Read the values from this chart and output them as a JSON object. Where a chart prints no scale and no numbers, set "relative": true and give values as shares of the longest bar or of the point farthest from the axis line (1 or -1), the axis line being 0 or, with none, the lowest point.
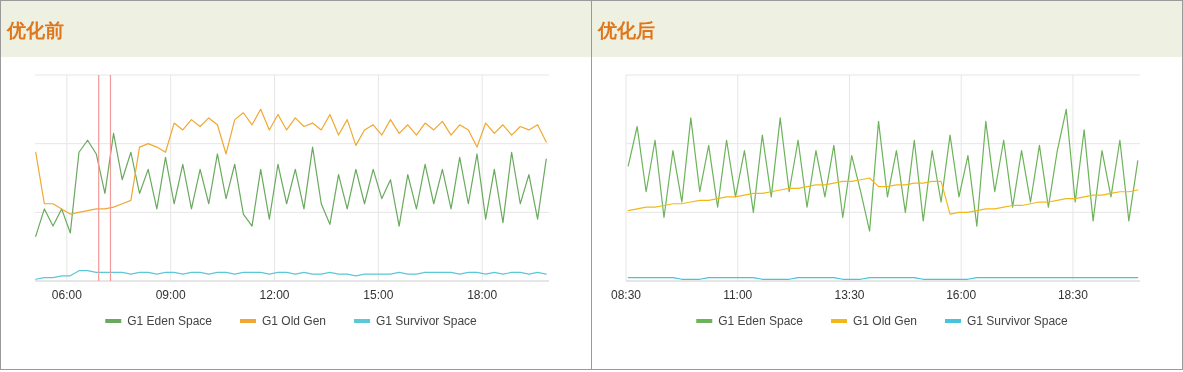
{
  "chart_data": [
    {
      "type": "line",
      "title": "优化前",
      "relative": true,
      "grid": true,
      "legend": "bottom",
      "xlim": [
        5.08,
        19.93
      ],
      "xticks": [
        {
          "value": 6,
          "label": "06:00"
        },
        {
          "value": 9,
          "label": "09:00"
        },
        {
          "value": 12,
          "label": "12:00"
        },
        {
          "value": 15,
          "label": "15:00"
        },
        {
          "value": 18,
          "label": "18:00"
        }
      ],
      "x": [
        5.1,
        5.35,
        5.6,
        5.85,
        6.1,
        6.35,
        6.6,
        6.85,
        7.1,
        7.35,
        7.6,
        7.85,
        8.1,
        8.35,
        8.6,
        8.85,
        9.1,
        9.35,
        9.6,
        9.85,
        10.1,
        10.35,
        10.6,
        10.85,
        11.1,
        11.35,
        11.6,
        11.85,
        12.1,
        12.35,
        12.6,
        12.85,
        13.1,
        13.35,
        13.6,
        13.85,
        14.1,
        14.35,
        14.6,
        14.85,
        15.1,
        15.35,
        15.6,
        15.85,
        16.1,
        16.35,
        16.6,
        16.85,
        17.1,
        17.35,
        17.6,
        17.85,
        18.1,
        18.35,
        18.6,
        18.85,
        19.1,
        19.35,
        19.6,
        19.85
      ],
      "series": [
        {
          "name": "G1 Eden Space",
          "color": "#6aaa5e",
          "values": [
            0.26,
            0.42,
            0.32,
            0.42,
            0.28,
            0.75,
            0.82,
            0.74,
            0.51,
            0.86,
            0.59,
            0.75,
            0.51,
            0.65,
            0.42,
            0.72,
            0.45,
            0.68,
            0.42,
            0.65,
            0.45,
            0.74,
            0.48,
            0.68,
            0.39,
            0.32,
            0.65,
            0.36,
            0.68,
            0.45,
            0.65,
            0.42,
            0.78,
            0.45,
            0.33,
            0.62,
            0.42,
            0.65,
            0.45,
            0.65,
            0.48,
            0.59,
            0.32,
            0.62,
            0.42,
            0.68,
            0.45,
            0.65,
            0.42,
            0.72,
            0.45,
            0.74,
            0.36,
            0.65,
            0.34,
            0.75,
            0.45,
            0.62,
            0.36,
            0.71
          ]
        },
        {
          "name": "G1 Old Gen",
          "color": "#f0a832",
          "values": [
            0.75,
            0.45,
            0.45,
            0.42,
            0.39,
            0.4,
            0.41,
            0.42,
            0.42,
            0.43,
            0.45,
            0.47,
            0.78,
            0.8,
            0.78,
            0.75,
            0.92,
            0.88,
            0.94,
            0.9,
            0.95,
            0.91,
            0.74,
            0.94,
            0.98,
            0.91,
            1,
            0.88,
            0.97,
            0.88,
            0.95,
            0.9,
            0.92,
            0.88,
            0.97,
            0.85,
            0.94,
            0.79,
            0.88,
            0.91,
            0.85,
            0.94,
            0.86,
            0.91,
            0.85,
            0.92,
            0.88,
            0.93,
            0.85,
            0.91,
            0.88,
            0.78,
            0.92,
            0.86,
            0.91,
            0.85,
            0.9,
            0.88,
            0.91,
            0.81
          ]
        },
        {
          "name": "G1 Survivor Space",
          "color": "#5bc8d8",
          "values": [
            0.01,
            0.02,
            0.02,
            0.03,
            0.03,
            0.06,
            0.06,
            0.05,
            0.05,
            0.05,
            0.05,
            0.04,
            0.05,
            0.05,
            0.04,
            0.05,
            0.05,
            0.04,
            0.05,
            0.05,
            0.04,
            0.05,
            0.05,
            0.04,
            0.05,
            0.05,
            0.05,
            0.04,
            0.05,
            0.05,
            0.04,
            0.05,
            0.04,
            0.04,
            0.05,
            0.04,
            0.04,
            0.03,
            0.04,
            0.04,
            0.04,
            0.04,
            0.05,
            0.04,
            0.04,
            0.05,
            0.05,
            0.05,
            0.05,
            0.04,
            0.05,
            0.05,
            0.04,
            0.05,
            0.04,
            0.05,
            0.05,
            0.04,
            0.05,
            0.04
          ]
        }
      ],
      "ref_lines": [
        {
          "axis": "x",
          "value": 6.92,
          "color": "#f29a9a"
        },
        {
          "axis": "x",
          "value": 7.26,
          "color": "#f29a9a"
        }
      ]
    },
    {
      "type": "line",
      "title": "优化后",
      "relative": true,
      "grid": true,
      "legend": "bottom",
      "xlim": [
        8.5,
        20.0
      ],
      "xticks": [
        {
          "value": 8.5,
          "label": "08:30"
        },
        {
          "value": 11,
          "label": "11:00"
        },
        {
          "value": 13.5,
          "label": "13:30"
        },
        {
          "value": 16,
          "label": "16:00"
        },
        {
          "value": 18.5,
          "label": "18:30"
        }
      ],
      "x": [
        8.55,
        8.75,
        8.95,
        9.15,
        9.35,
        9.55,
        9.75,
        9.95,
        10.15,
        10.35,
        10.55,
        10.75,
        10.95,
        11.15,
        11.35,
        11.55,
        11.75,
        11.95,
        12.15,
        12.35,
        12.55,
        12.75,
        12.95,
        13.15,
        13.35,
        13.55,
        13.75,
        13.95,
        14.15,
        14.35,
        14.55,
        14.75,
        14.95,
        15.15,
        15.35,
        15.55,
        15.75,
        15.95,
        16.15,
        16.35,
        16.55,
        16.75,
        16.95,
        17.15,
        17.35,
        17.55,
        17.75,
        17.95,
        18.15,
        18.35,
        18.55,
        18.75,
        18.95,
        19.15,
        19.35,
        19.55,
        19.75,
        19.95
      ],
      "series": [
        {
          "name": "G1 Eden Space",
          "color": "#6db35a",
          "values": [
            0.67,
            0.9,
            0.52,
            0.82,
            0.37,
            0.76,
            0.46,
            0.95,
            0.52,
            0.79,
            0.43,
            0.82,
            0.49,
            0.76,
            0.4,
            0.85,
            0.49,
            0.95,
            0.52,
            0.82,
            0.43,
            0.76,
            0.49,
            0.79,
            0.37,
            0.73,
            0.52,
            0.29,
            0.93,
            0.49,
            0.76,
            0.4,
            0.82,
            0.35,
            0.76,
            0.46,
            0.85,
            0.49,
            0.73,
            0.32,
            0.93,
            0.52,
            0.82,
            0.43,
            0.76,
            0.46,
            0.79,
            0.43,
            0.76,
            1,
            0.46,
            0.88,
            0.35,
            0.76,
            0.49,
            0.82,
            0.35,
            0.7
          ]
        },
        {
          "name": "G1 Old Gen",
          "color": "#f2b81b",
          "values": [
            0.41,
            0.42,
            0.43,
            0.43,
            0.44,
            0.45,
            0.45,
            0.46,
            0.47,
            0.47,
            0.48,
            0.49,
            0.49,
            0.5,
            0.51,
            0.51,
            0.52,
            0.53,
            0.54,
            0.54,
            0.55,
            0.56,
            0.56,
            0.57,
            0.58,
            0.58,
            0.59,
            0.6,
            0.55,
            0.55,
            0.56,
            0.56,
            0.57,
            0.57,
            0.58,
            0.58,
            0.39,
            0.4,
            0.4,
            0.41,
            0.42,
            0.42,
            0.43,
            0.44,
            0.44,
            0.45,
            0.46,
            0.46,
            0.47,
            0.48,
            0.48,
            0.49,
            0.5,
            0.5,
            0.51,
            0.52,
            0.52,
            0.53
          ]
        },
        {
          "name": "G1 Survivor Space",
          "color": "#45c4dc",
          "values": [
            0.02,
            0.02,
            0.02,
            0.02,
            0.02,
            0.02,
            0.01,
            0.01,
            0.01,
            0.02,
            0.02,
            0.02,
            0.02,
            0.02,
            0.02,
            0.01,
            0.01,
            0.01,
            0.01,
            0.02,
            0.02,
            0.02,
            0.02,
            0.02,
            0.01,
            0.01,
            0.01,
            0.02,
            0.02,
            0.02,
            0.02,
            0.02,
            0.02,
            0.01,
            0.01,
            0.01,
            0.01,
            0.01,
            0.01,
            0.02,
            0.02,
            0.02,
            0.02,
            0.02,
            0.02,
            0.02,
            0.02,
            0.02,
            0.02,
            0.02,
            0.02,
            0.02,
            0.02,
            0.02,
            0.02,
            0.02,
            0.02,
            0.02
          ]
        }
      ]
    }
  ]
}
